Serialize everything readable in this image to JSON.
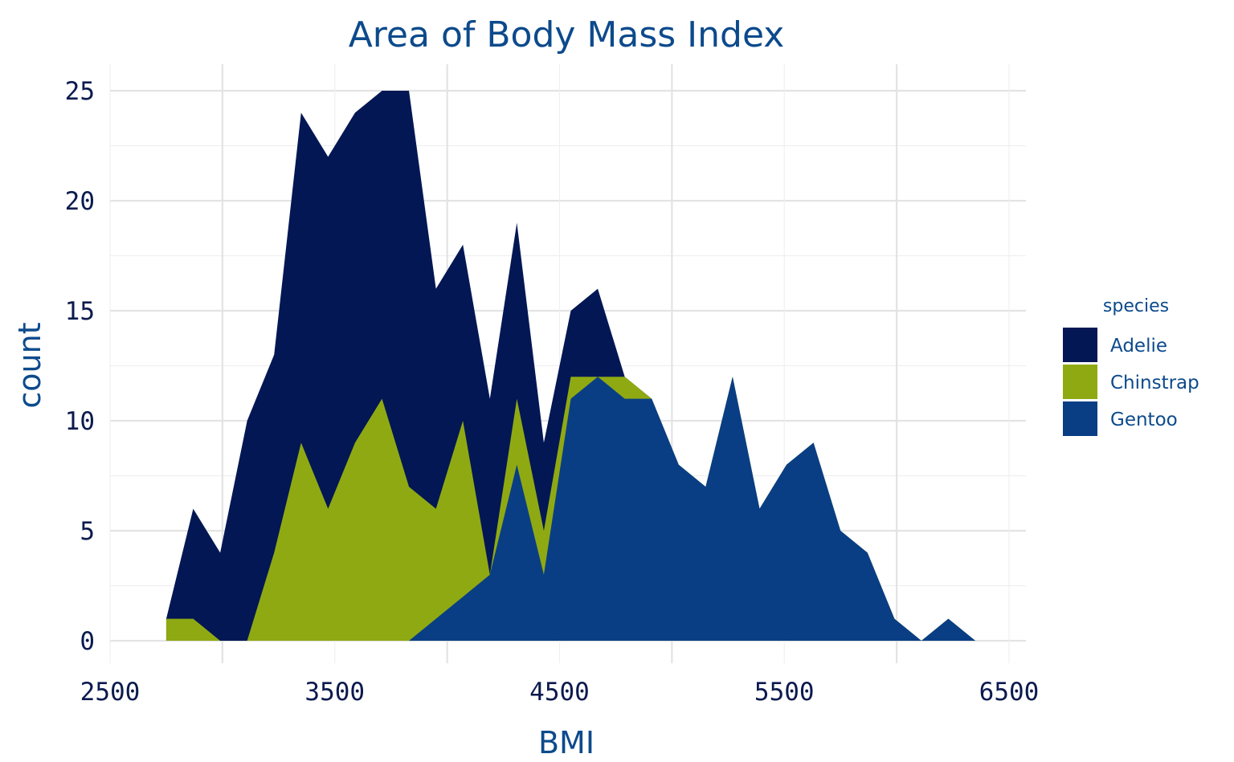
{
  "chart_data": {
    "type": "area",
    "stacked": true,
    "title": "Area of Body Mass Index",
    "xlabel": "BMI",
    "ylabel": "count",
    "xlim": [
      2500,
      6500
    ],
    "ylim": [
      0,
      25
    ],
    "x_ticks": [
      "2500",
      "3500",
      "4500",
      "5500",
      "6500"
    ],
    "y_ticks": [
      "0",
      "5",
      "10",
      "15",
      "20",
      "25"
    ],
    "x_tick_values": [
      2500,
      3500,
      4500,
      5500,
      6500
    ],
    "y_tick_values": [
      0,
      5,
      10,
      15,
      20,
      25
    ],
    "grid": true,
    "legend": {
      "title": "species",
      "position": "right"
    },
    "x": [
      2750,
      2870,
      2990,
      3110,
      3230,
      3350,
      3470,
      3590,
      3710,
      3830,
      3950,
      4070,
      4190,
      4310,
      4430,
      4550,
      4670,
      4790,
      4910,
      5030,
      5150,
      5270,
      5390,
      5510,
      5630,
      5750,
      5870,
      5990,
      6110,
      6230,
      6350
    ],
    "series": [
      {
        "name": "Adelie",
        "color": "#031754",
        "values": [
          0,
          5,
          4,
          10,
          9,
          15,
          16,
          15,
          14,
          18,
          10,
          8,
          8,
          8,
          4,
          3,
          4,
          0,
          0,
          0,
          0,
          0,
          0,
          0,
          0,
          0,
          0,
          0,
          0,
          0,
          0
        ]
      },
      {
        "name": "Chinstrap",
        "color": "#8fa913",
        "values": [
          1,
          1,
          0,
          0,
          4,
          9,
          6,
          9,
          11,
          7,
          5,
          8,
          0,
          3,
          2,
          1,
          0,
          1,
          0,
          0,
          0,
          0,
          0,
          0,
          0,
          0,
          0,
          0,
          0,
          0,
          0
        ]
      },
      {
        "name": "Gentoo",
        "color": "#093e85",
        "values": [
          0,
          0,
          0,
          0,
          0,
          0,
          0,
          0,
          0,
          0,
          1,
          2,
          3,
          8,
          3,
          11,
          12,
          11,
          11,
          8,
          7,
          12,
          6,
          8,
          9,
          5,
          4,
          1,
          0,
          1,
          0
        ]
      }
    ]
  }
}
